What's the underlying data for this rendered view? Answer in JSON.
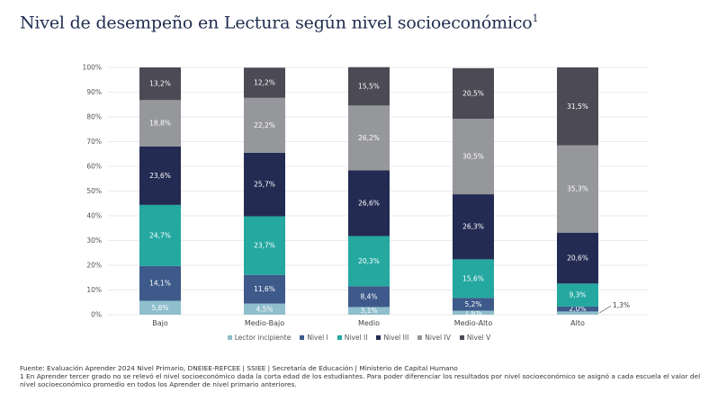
{
  "title": {
    "text": "Nivel de desempeño en Lectura según nivel socioeconómico",
    "footnote_mark": "1"
  },
  "chart_data": {
    "type": "bar",
    "stacked": true,
    "categories": [
      "Bajo",
      "Medio-Bajo",
      "Medio",
      "Medio-Alto",
      "Alto"
    ],
    "ylim": [
      0,
      100
    ],
    "yticks": [
      "0%",
      "10%",
      "20%",
      "30%",
      "40%",
      "50%",
      "60%",
      "70%",
      "80%",
      "90%",
      "100%"
    ],
    "series": [
      {
        "name": "Lector incipiente",
        "color": "#8fbfcc",
        "values": [
          5.6,
          4.5,
          3.1,
          1.6,
          1.3
        ],
        "labels": [
          "5,6%",
          "4,5%",
          "3,1%",
          "1,6%",
          "1,3%"
        ]
      },
      {
        "name": "Nivel I",
        "color": "#3d5a8a",
        "values": [
          14.1,
          11.6,
          8.4,
          5.2,
          2.0
        ],
        "labels": [
          "14,1%",
          "11,6%",
          "8,4%",
          "5,2%",
          "2,0%"
        ]
      },
      {
        "name": "Nivel II",
        "color": "#24a8a0",
        "values": [
          24.7,
          23.7,
          20.3,
          15.6,
          9.3
        ],
        "labels": [
          "24,7%",
          "23,7%",
          "20,3%",
          "15,6%",
          "9,3%"
        ]
      },
      {
        "name": "Nivel III",
        "color": "#232b52",
        "values": [
          23.6,
          25.7,
          26.6,
          26.3,
          20.6
        ],
        "labels": [
          "23,6%",
          "25,7%",
          "26,6%",
          "26,3%",
          "20,6%"
        ]
      },
      {
        "name": "Nivel IV",
        "color": "#96979b",
        "values": [
          18.8,
          22.2,
          26.2,
          30.5,
          35.3
        ],
        "labels": [
          "18,8%",
          "22,2%",
          "26,2%",
          "30,5%",
          "35,3%"
        ]
      },
      {
        "name": "Nivel V",
        "color": "#4b4a55",
        "values": [
          13.2,
          12.2,
          15.5,
          20.5,
          31.5
        ],
        "labels": [
          "13,2%",
          "12,2%",
          "15,5%",
          "20,5%",
          "31,5%"
        ]
      }
    ]
  },
  "footer": {
    "source": "Fuente: Evaluación Aprender 2024 Nivel Primario, DNEIEE-REFCEE | SSIEE | Secretaría de Educación | Ministerio de Capital Humano",
    "note": "1 En Aprender tercer grado no se relevó el nivel socioeconómico dada la corta edad de los estudiantes. Para poder diferenciar los resultados por nivel socioeconómico se asignó a cada escuela el valor del nivel socioeconómico promedio en todos los Aprender de nivel primario anteriores."
  }
}
